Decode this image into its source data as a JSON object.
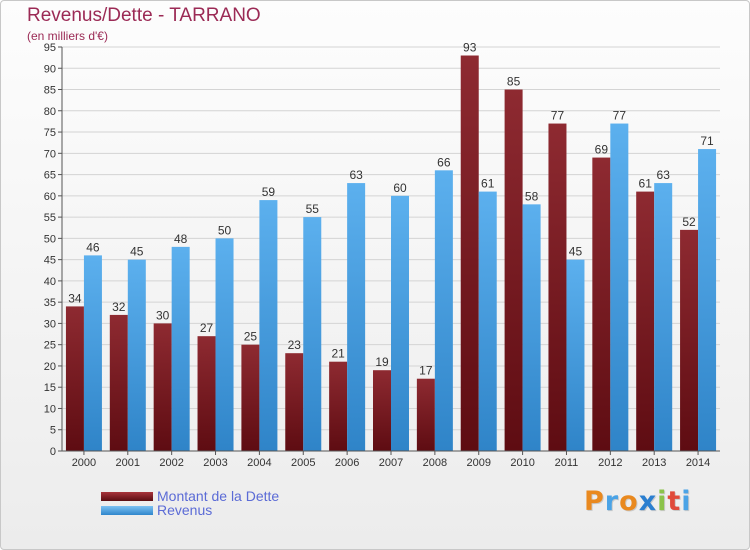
{
  "header": {
    "title": "Revenus/Dette - TARRANO",
    "subtitle": "(en milliers d'€)"
  },
  "legend": {
    "debt_label": "Montant de la Dette",
    "revenue_label": "Revenus"
  },
  "logo": {
    "text": "Proxiti"
  },
  "colors": {
    "debt": "#7a1a1f",
    "revenue": "#4aa3e6",
    "title": "#9b2a55",
    "legend_text": "#5b6bd6"
  },
  "chart_data": {
    "type": "bar",
    "categories": [
      "2000",
      "2001",
      "2002",
      "2003",
      "2004",
      "2005",
      "2006",
      "2007",
      "2008",
      "2009",
      "2010",
      "2011",
      "2012",
      "2013",
      "2014"
    ],
    "series": [
      {
        "name": "Montant de la Dette",
        "values": [
          34,
          32,
          30,
          27,
          25,
          23,
          21,
          19,
          17,
          93,
          85,
          77,
          69,
          61,
          52
        ]
      },
      {
        "name": "Revenus",
        "values": [
          46,
          45,
          48,
          50,
          59,
          55,
          63,
          60,
          66,
          61,
          58,
          45,
          77,
          63,
          71
        ]
      }
    ],
    "title": "Revenus/Dette - TARRANO",
    "ylabel": "(en milliers d'€)",
    "ylim": [
      0,
      95
    ],
    "ytick_step": 5,
    "grid": true,
    "legend_position": "bottom-left"
  }
}
